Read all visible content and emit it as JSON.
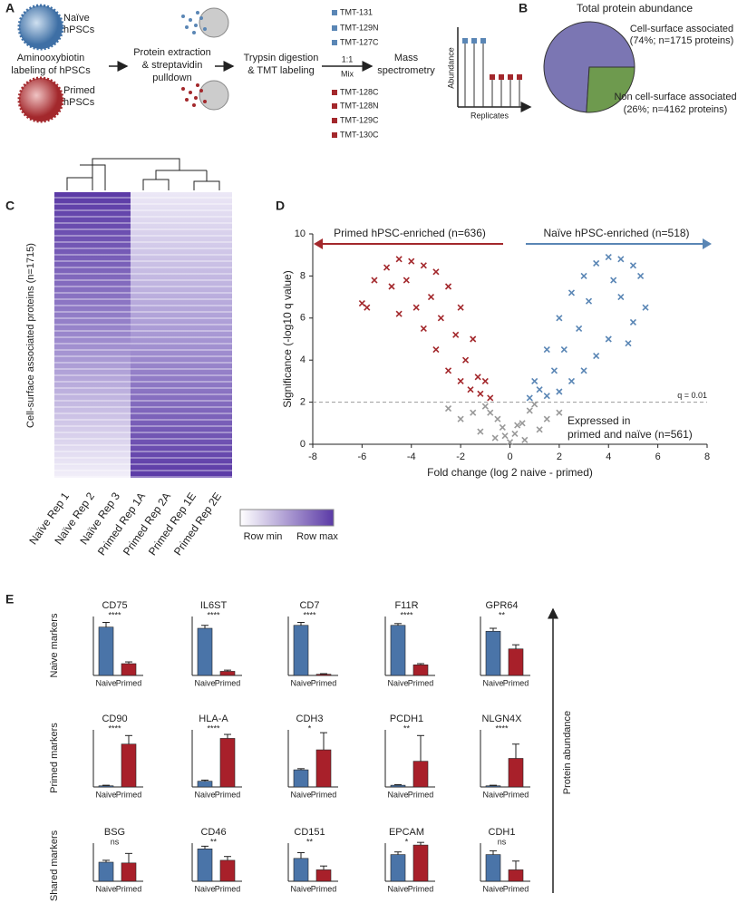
{
  "panel_labels": [
    "A",
    "B",
    "C",
    "D",
    "E"
  ],
  "panel_a": {
    "naive_cell": [
      "Naïve",
      "hPSCs"
    ],
    "primed_cell": [
      "Primed",
      "hPSCs"
    ],
    "labeling": [
      "Aminooxybiotin",
      "labeling of hPSCs"
    ],
    "extraction": [
      "Protein extraction",
      "& streptavidin",
      "pulldown"
    ],
    "digestion": [
      "Trypsin digestion",
      "& TMT labeling"
    ],
    "mix": [
      "1:1",
      "Mix"
    ],
    "ms": [
      "Mass",
      "spectrometry"
    ],
    "tmt_naive": [
      "TMT-131",
      "TMT-129N",
      "TMT-127C"
    ],
    "tmt_primed": [
      "TMT-128C",
      "TMT-128N",
      "TMT-129C",
      "TMT-130C"
    ],
    "ms_axes": [
      "Abundance",
      "Replicates"
    ]
  },
  "panel_c": {
    "y_label": "Cell-surface associated proteins (n=1715)",
    "columns": [
      "Naïve Rep 1",
      "Naïve Rep 2",
      "Naïve Rep 3",
      "Primed Rep 1A",
      "Primed Rep 2A",
      "Primed Rep 1E",
      "Primed Rep 2E"
    ],
    "column_colors": [
      "#5a7fa8",
      "#5a7fa8",
      "#5a7fa8",
      "#a3282c",
      "#a3282c",
      "#a3282c",
      "#a3282c"
    ],
    "colorbar": [
      "Row min",
      "Row max"
    ]
  },
  "panel_e": {
    "row_labels": [
      "Naive markers",
      "Primed markers",
      "Shared markers"
    ],
    "axis_label": "Protein abundance"
  },
  "chart_data": [
    {
      "type": "pie",
      "title": "Total protein abundance",
      "labels": [
        "Cell-surface associated",
        "Non cell-surface associated"
      ],
      "values": [
        74,
        26
      ],
      "value_labels": [
        "(74%; n=1715 proteins)",
        "(26%; n=4162 proteins)"
      ],
      "colors": [
        "#7b76b3",
        "#6e9a4e"
      ]
    },
    {
      "type": "scatter",
      "x_label": "Fold change (log 2 naive - primed)",
      "y_label": "Significance (-log10 q value)",
      "xlim": [
        -8,
        8
      ],
      "xticks": [
        -8,
        -6,
        -4,
        -2,
        0,
        2,
        4,
        6,
        8
      ],
      "ylim": [
        0,
        10
      ],
      "yticks": [
        0,
        2,
        4,
        6,
        8,
        10
      ],
      "threshold": 2,
      "threshold_label": "q = 0.01",
      "left_label": "Primed hPSC-enriched (n=636)",
      "right_label": "Naïve hPSC-enriched (n=518)",
      "shared_label": [
        "Expressed in",
        "primed and naïve (n=561)"
      ],
      "series": [
        {
          "color": "#a3282c",
          "x": [
            -4.5,
            -4,
            -3.5,
            -3,
            -2.5,
            -2,
            -1.5,
            -1,
            -0.8,
            -5,
            -5.5,
            -5.8,
            -4.8,
            -4.2,
            -3.2,
            -2.8,
            -2.2,
            -1.8,
            -1.3,
            -3.8,
            -4.5,
            -2,
            -1.2,
            -3,
            -2.5,
            -6,
            -3.5,
            -1.6
          ],
          "values": [
            8.8,
            8.7,
            8.5,
            8.2,
            7.5,
            6.5,
            5,
            3,
            2.2,
            8.4,
            7.8,
            6.5,
            7.5,
            7.8,
            7,
            6,
            5.2,
            4,
            3.2,
            6.5,
            6.2,
            3,
            2.4,
            4.5,
            3.5,
            6.7,
            5.5,
            2.6
          ]
        },
        {
          "color": "#5a86b5",
          "x": [
            0.8,
            1,
            1.5,
            2,
            2.5,
            3,
            3.5,
            4,
            4.5,
            5,
            5.5,
            5,
            4.2,
            3.2,
            2.8,
            2.2,
            1.8,
            1.2,
            3.5,
            4,
            4.8,
            2.5,
            1.5,
            3,
            4.5,
            5.3,
            2
          ],
          "values": [
            2.2,
            3,
            4.5,
            6,
            7.2,
            8,
            8.6,
            8.9,
            8.8,
            8.5,
            6.5,
            5.8,
            7.8,
            6.8,
            5.5,
            4.5,
            3.5,
            2.6,
            4.2,
            5,
            4.8,
            3,
            2.3,
            3.5,
            7,
            8,
            2.5
          ]
        },
        {
          "color": "#999999",
          "x": [
            0,
            0.2,
            -0.2,
            0.5,
            -0.5,
            0.8,
            -0.8,
            1,
            -1,
            -1.5,
            1.5,
            -2,
            2,
            -0.3,
            0.3,
            -1.2,
            1.2,
            -2.5,
            0.6,
            -0.6
          ],
          "values": [
            0.1,
            0.5,
            0.4,
            1,
            1.2,
            1.6,
            1.5,
            1.9,
            1.8,
            1.5,
            1.2,
            1.2,
            1.5,
            0.8,
            0.9,
            0.6,
            0.7,
            1.7,
            0.2,
            0.3
          ]
        }
      ]
    },
    {
      "type": "bar",
      "title": "CD75",
      "annotation": "****",
      "categories": [
        "Naive",
        "Primed"
      ],
      "values": [
        8.2,
        2
      ],
      "errors": [
        0.8,
        0.3
      ],
      "ylim": [
        0,
        10
      ],
      "colors": [
        "#4a74a8",
        "#a8202a"
      ]
    },
    {
      "type": "bar",
      "title": "IL6ST",
      "annotation": "****",
      "categories": [
        "Naive",
        "Primed"
      ],
      "values": [
        8,
        0.7
      ],
      "errors": [
        0.5,
        0.2
      ],
      "ylim": [
        0,
        10
      ],
      "colors": [
        "#4a74a8",
        "#a8202a"
      ]
    },
    {
      "type": "bar",
      "title": "CD7",
      "annotation": "****",
      "categories": [
        "Naive",
        "Primed"
      ],
      "values": [
        8.5,
        0.2
      ],
      "errors": [
        0.5,
        0.1
      ],
      "ylim": [
        0,
        10
      ],
      "colors": [
        "#4a74a8",
        "#a8202a"
      ]
    },
    {
      "type": "bar",
      "title": "F11R",
      "annotation": "****",
      "categories": [
        "Naive",
        "Primed"
      ],
      "values": [
        8.5,
        1.8
      ],
      "errors": [
        0.3,
        0.2
      ],
      "ylim": [
        0,
        10
      ],
      "colors": [
        "#4a74a8",
        "#a8202a"
      ]
    },
    {
      "type": "bar",
      "title": "GPR64",
      "annotation": "**",
      "categories": [
        "Naive",
        "Primed"
      ],
      "values": [
        7.5,
        4.5
      ],
      "errors": [
        0.5,
        0.7
      ],
      "ylim": [
        0,
        10
      ],
      "colors": [
        "#4a74a8",
        "#a8202a"
      ]
    },
    {
      "type": "bar",
      "title": "CD90",
      "annotation": "****",
      "categories": [
        "Naive",
        "Primed"
      ],
      "values": [
        0.2,
        7.5
      ],
      "errors": [
        0.1,
        1.5
      ],
      "ylim": [
        0,
        10
      ],
      "colors": [
        "#4a74a8",
        "#a8202a"
      ]
    },
    {
      "type": "bar",
      "title": "HLA-A",
      "annotation": "****",
      "categories": [
        "Naive",
        "Primed"
      ],
      "values": [
        1,
        8.5
      ],
      "errors": [
        0.2,
        0.7
      ],
      "ylim": [
        0,
        10
      ],
      "colors": [
        "#4a74a8",
        "#a8202a"
      ]
    },
    {
      "type": "bar",
      "title": "CDH3",
      "annotation": "*",
      "categories": [
        "Naive",
        "Primed"
      ],
      "values": [
        3,
        6.5
      ],
      "errors": [
        0.2,
        3
      ],
      "ylim": [
        0,
        10
      ],
      "colors": [
        "#4a74a8",
        "#a8202a"
      ]
    },
    {
      "type": "bar",
      "title": "PCDH1",
      "annotation": "**",
      "categories": [
        "Naive",
        "Primed"
      ],
      "values": [
        0.3,
        4.5
      ],
      "errors": [
        0.1,
        4.5
      ],
      "ylim": [
        0,
        10
      ],
      "colors": [
        "#4a74a8",
        "#a8202a"
      ]
    },
    {
      "type": "bar",
      "title": "NLGN4X",
      "annotation": "****",
      "categories": [
        "Naive",
        "Primed"
      ],
      "values": [
        0.2,
        5
      ],
      "errors": [
        0.1,
        2.5
      ],
      "ylim": [
        0,
        10
      ],
      "colors": [
        "#4a74a8",
        "#a8202a"
      ]
    },
    {
      "type": "bar",
      "title": "BSG",
      "annotation": "ns",
      "categories": [
        "Naive",
        "Primed"
      ],
      "values": [
        5,
        4.8
      ],
      "errors": [
        0.5,
        2.5
      ],
      "ylim": [
        0,
        10
      ],
      "colors": [
        "#4a74a8",
        "#a8202a"
      ]
    },
    {
      "type": "bar",
      "title": "CD46",
      "annotation": "**",
      "categories": [
        "Naive",
        "Primed"
      ],
      "values": [
        8.5,
        5.5
      ],
      "errors": [
        0.7,
        1
      ],
      "ylim": [
        0,
        10
      ],
      "colors": [
        "#4a74a8",
        "#a8202a"
      ]
    },
    {
      "type": "bar",
      "title": "CD151",
      "annotation": "**",
      "categories": [
        "Naive",
        "Primed"
      ],
      "values": [
        6,
        3
      ],
      "errors": [
        1.5,
        1
      ],
      "ylim": [
        0,
        10
      ],
      "colors": [
        "#4a74a8",
        "#a8202a"
      ]
    },
    {
      "type": "bar",
      "title": "EPCAM",
      "annotation": "*",
      "categories": [
        "Naive",
        "Primed"
      ],
      "values": [
        7,
        9.5
      ],
      "errors": [
        0.7,
        0.7
      ],
      "ylim": [
        0,
        10
      ],
      "colors": [
        "#4a74a8",
        "#a8202a"
      ]
    },
    {
      "type": "bar",
      "title": "CDH1",
      "annotation": "ns",
      "categories": [
        "Naive",
        "Primed"
      ],
      "values": [
        7,
        3
      ],
      "errors": [
        1,
        2.3
      ],
      "ylim": [
        0,
        10
      ],
      "colors": [
        "#4a74a8",
        "#a8202a"
      ]
    }
  ]
}
